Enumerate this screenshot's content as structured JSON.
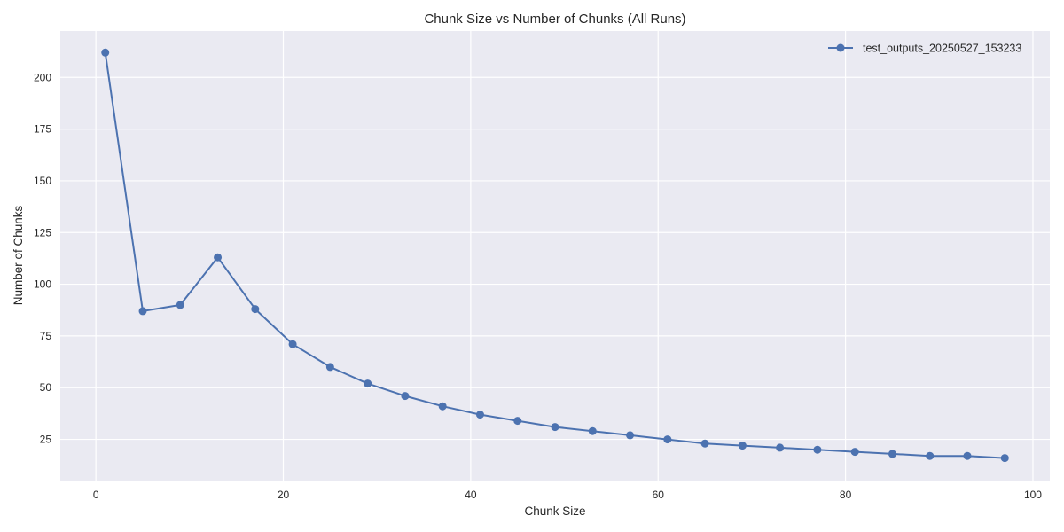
{
  "chart_data": {
    "type": "line",
    "title": "Chunk Size vs Number of Chunks (All Runs)",
    "xlabel": "Chunk Size",
    "ylabel": "Number of Chunks",
    "xlim": [
      -3.8,
      101.8
    ],
    "ylim": [
      5.1,
      222.4
    ],
    "xticks": [
      0,
      20,
      40,
      60,
      80,
      100
    ],
    "yticks": [
      25,
      50,
      75,
      100,
      125,
      150,
      175,
      200
    ],
    "grid": true,
    "legend_position": "top-right",
    "series": [
      {
        "name": "test_outputs_20250527_153233",
        "color": "#4c72b0",
        "x": [
          1,
          5,
          9,
          13,
          17,
          21,
          25,
          29,
          33,
          37,
          41,
          45,
          49,
          53,
          57,
          61,
          65,
          69,
          73,
          77,
          81,
          85,
          89,
          93,
          97
        ],
        "y": [
          212,
          87,
          90,
          113,
          88,
          71,
          60,
          52,
          46,
          41,
          37,
          34,
          31,
          29,
          27,
          25,
          23,
          22,
          21,
          20,
          19,
          18,
          17,
          17,
          16
        ]
      }
    ]
  },
  "colors": {
    "plot_background": "#eaeaf2",
    "grid": "#ffffff",
    "text": "#262626"
  }
}
